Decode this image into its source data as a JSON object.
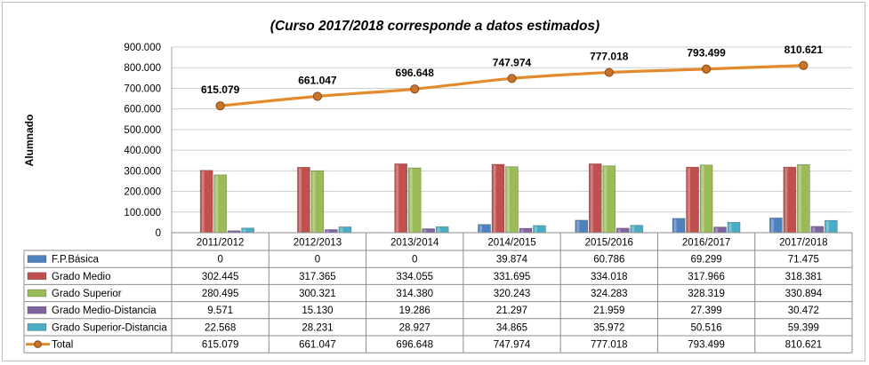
{
  "chart_data": {
    "type": "bar",
    "title": "(Curso 2017/2018 corresponde a datos estimados)",
    "ylabel": "Alumnado",
    "ylim": [
      0,
      900000
    ],
    "yticks": [
      "0",
      "100.000",
      "200.000",
      "300.000",
      "400.000",
      "500.000",
      "600.000",
      "700.000",
      "800.000",
      "900.000"
    ],
    "grid": true,
    "legend": "table-left",
    "categories": [
      "2011/2012",
      "2012/2013",
      "2013/2014",
      "2014/2015",
      "2015/2016",
      "2016/2017",
      "2017/2018"
    ],
    "series": [
      {
        "name": "F.P.Básica",
        "kind": "bar",
        "color": "#4f81bd",
        "values": [
          0,
          0,
          0,
          39874,
          60786,
          69299,
          71475
        ],
        "labels": [
          "0",
          "0",
          "0",
          "39.874",
          "60.786",
          "69.299",
          "71.475"
        ]
      },
      {
        "name": "Grado Medio",
        "kind": "bar",
        "color": "#c0504d",
        "values": [
          302445,
          317365,
          334055,
          331695,
          334018,
          317966,
          318381
        ],
        "labels": [
          "302.445",
          "317.365",
          "334.055",
          "331.695",
          "334.018",
          "317.966",
          "318.381"
        ]
      },
      {
        "name": "Grado Superior",
        "kind": "bar",
        "color": "#9bbb59",
        "values": [
          280495,
          300321,
          314380,
          320243,
          324283,
          328319,
          330894
        ],
        "labels": [
          "280.495",
          "300.321",
          "314.380",
          "320.243",
          "324.283",
          "328.319",
          "330.894"
        ]
      },
      {
        "name": "Grado Medio-Distancia",
        "kind": "bar",
        "color": "#8064a2",
        "values": [
          9571,
          15130,
          19286,
          21297,
          21959,
          27399,
          30472
        ],
        "labels": [
          "9.571",
          "15.130",
          "19.286",
          "21.297",
          "21.959",
          "27.399",
          "30.472"
        ]
      },
      {
        "name": "Grado Superior-Distancia",
        "kind": "bar",
        "color": "#4bacc6",
        "values": [
          22568,
          28231,
          28927,
          34865,
          35972,
          50516,
          59399
        ],
        "labels": [
          "22.568",
          "28.231",
          "28.927",
          "34.865",
          "35.972",
          "50.516",
          "59.399"
        ]
      },
      {
        "name": "Total",
        "kind": "line",
        "color": "#e38b2c",
        "values": [
          615079,
          661047,
          696648,
          747974,
          777018,
          793499,
          810621
        ],
        "labels": [
          "615.079",
          "661.047",
          "696.648",
          "747.974",
          "777.018",
          "793.499",
          "810.621"
        ]
      }
    ]
  }
}
